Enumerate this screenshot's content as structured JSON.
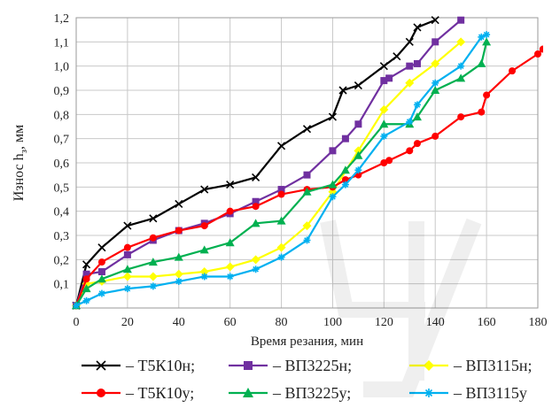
{
  "chart_data": {
    "type": "line",
    "title": "",
    "xlabel": "Время резания, мин",
    "ylabel": "Износ h",
    "ylabel_sub": "з",
    "ylabel_tail": ", мм",
    "xlim": [
      0,
      180
    ],
    "ylim": [
      0,
      1.2
    ],
    "x_ticks": [
      "0",
      "20",
      "40",
      "60",
      "80",
      "100",
      "120",
      "140",
      "160",
      "180"
    ],
    "y_ticks": [
      "0,1",
      "0,2",
      "0,3",
      "0,4",
      "0,5",
      "0,6",
      "0,7",
      "0,8",
      "0,9",
      "1,0",
      "1,1",
      "1,2"
    ],
    "grid": true,
    "legend_position": "bottom",
    "series": [
      {
        "name": "– Т5К10н;",
        "color": "#000000",
        "marker": "x",
        "x": [
          0,
          4,
          10,
          20,
          30,
          40,
          50,
          60,
          70,
          80,
          90,
          100,
          104,
          110,
          120,
          125,
          130,
          133,
          140
        ],
        "y": [
          0.01,
          0.18,
          0.25,
          0.34,
          0.37,
          0.43,
          0.49,
          0.51,
          0.54,
          0.67,
          0.74,
          0.79,
          0.9,
          0.92,
          1.0,
          1.04,
          1.1,
          1.16,
          1.19
        ]
      },
      {
        "name": "– ВП3225н;",
        "color": "#7030a0",
        "marker": "square",
        "x": [
          0,
          4,
          10,
          20,
          30,
          40,
          50,
          60,
          70,
          80,
          90,
          100,
          105,
          110,
          120,
          122,
          130,
          133,
          140,
          150
        ],
        "y": [
          0.01,
          0.14,
          0.15,
          0.22,
          0.28,
          0.32,
          0.35,
          0.39,
          0.44,
          0.49,
          0.55,
          0.65,
          0.7,
          0.76,
          0.94,
          0.95,
          1.0,
          1.01,
          1.1,
          1.19
        ]
      },
      {
        "name": "– ВП3115н;",
        "color": "#ffff00",
        "marker": "diamond",
        "x": [
          0,
          4,
          10,
          20,
          30,
          40,
          50,
          60,
          70,
          80,
          90,
          100,
          110,
          120,
          130,
          140,
          150
        ],
        "y": [
          0.01,
          0.1,
          0.11,
          0.13,
          0.13,
          0.14,
          0.15,
          0.17,
          0.2,
          0.25,
          0.34,
          0.48,
          0.65,
          0.82,
          0.93,
          1.01,
          1.1
        ]
      },
      {
        "name": "– Т5К10у;",
        "color": "#ff0000",
        "marker": "circle",
        "x": [
          0,
          4,
          10,
          20,
          30,
          40,
          50,
          60,
          70,
          80,
          90,
          100,
          105,
          110,
          120,
          122,
          130,
          133,
          140,
          150,
          158,
          160,
          170,
          180,
          182
        ],
        "y": [
          0.01,
          0.12,
          0.19,
          0.25,
          0.29,
          0.32,
          0.34,
          0.4,
          0.42,
          0.47,
          0.49,
          0.5,
          0.53,
          0.55,
          0.6,
          0.61,
          0.65,
          0.68,
          0.71,
          0.79,
          0.81,
          0.88,
          0.98,
          1.05,
          1.07
        ]
      },
      {
        "name": "– ВП3225у;",
        "color": "#00b050",
        "marker": "triangle",
        "x": [
          0,
          4,
          10,
          20,
          30,
          40,
          50,
          60,
          70,
          80,
          90,
          100,
          105,
          110,
          120,
          130,
          133,
          140,
          150,
          158,
          160
        ],
        "y": [
          0.01,
          0.08,
          0.12,
          0.16,
          0.19,
          0.21,
          0.24,
          0.27,
          0.35,
          0.36,
          0.48,
          0.51,
          0.57,
          0.63,
          0.76,
          0.76,
          0.79,
          0.9,
          0.95,
          1.01,
          1.1
        ]
      },
      {
        "name": "– ВП3115у",
        "color": "#00b0f0",
        "marker": "asterisk",
        "x": [
          0,
          4,
          10,
          20,
          30,
          40,
          50,
          60,
          70,
          80,
          90,
          100,
          105,
          110,
          120,
          130,
          133,
          140,
          150,
          158,
          160
        ],
        "y": [
          0.01,
          0.03,
          0.06,
          0.08,
          0.09,
          0.11,
          0.13,
          0.13,
          0.16,
          0.21,
          0.28,
          0.46,
          0.51,
          0.57,
          0.71,
          0.77,
          0.84,
          0.93,
          1.0,
          1.12,
          1.13
        ]
      }
    ]
  }
}
